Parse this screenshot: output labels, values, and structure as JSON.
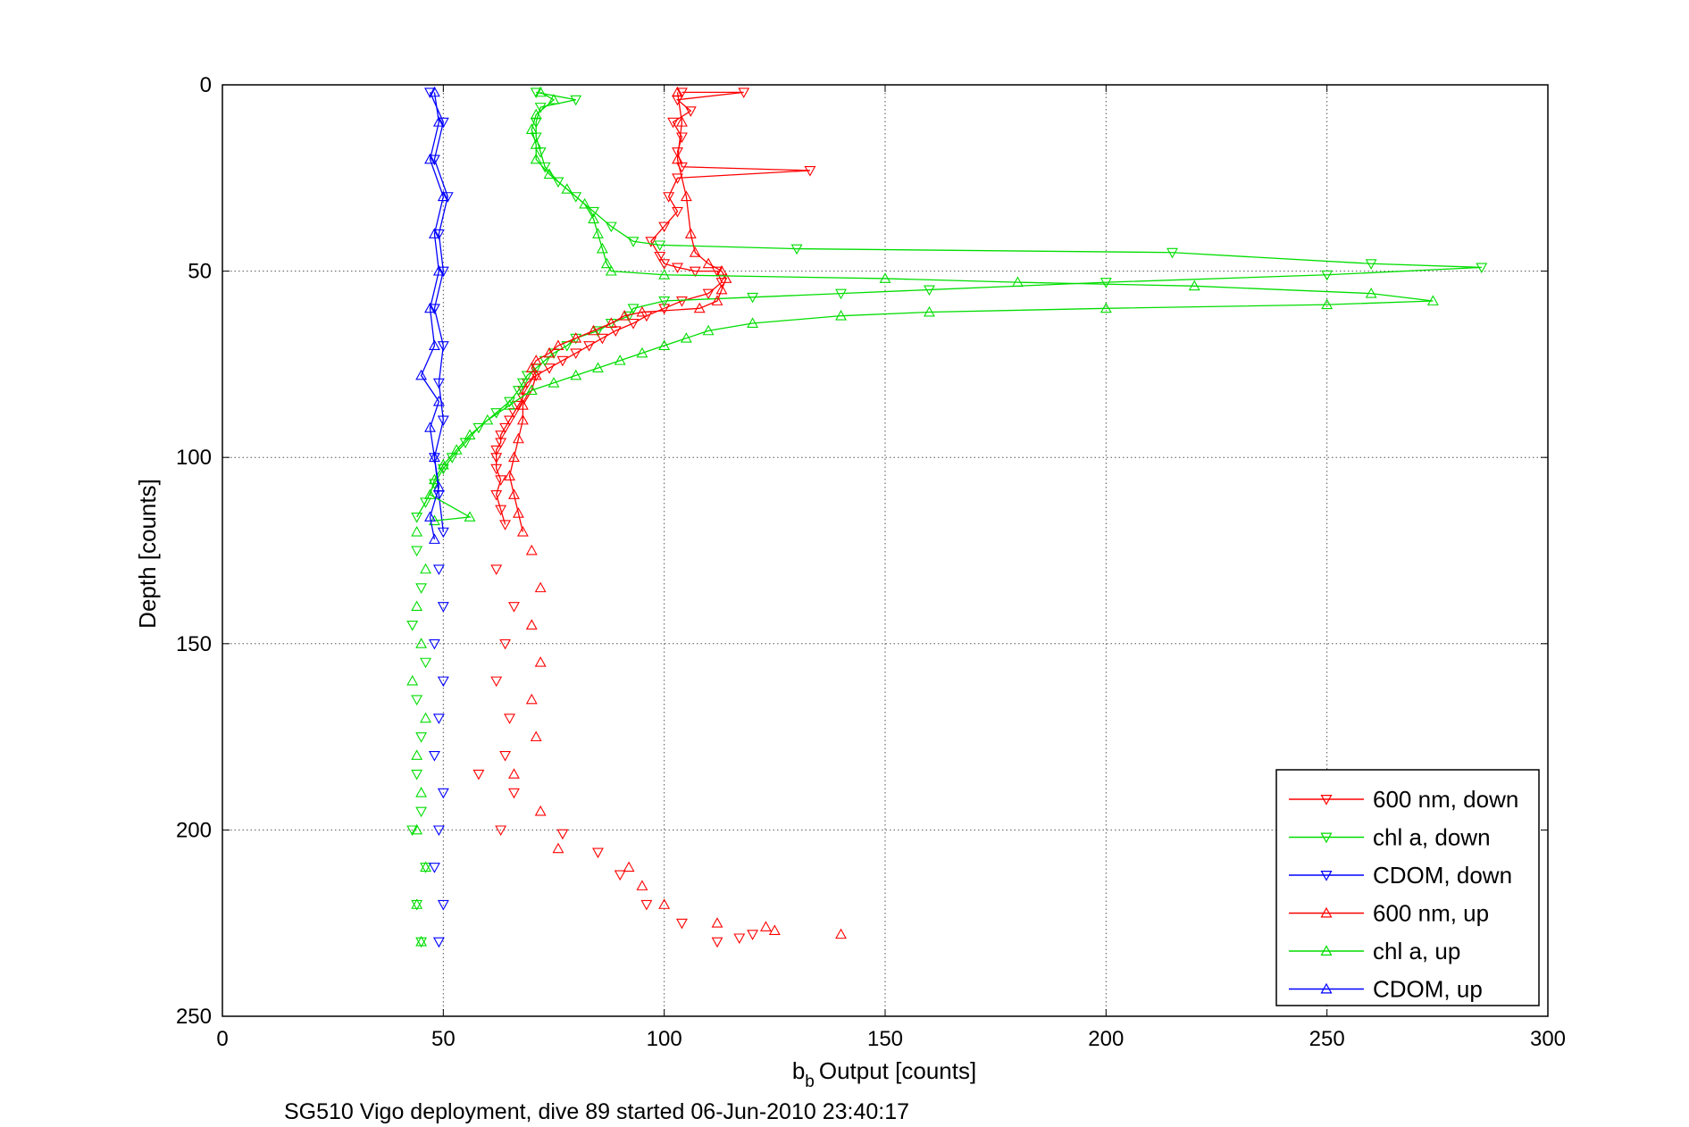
{
  "chart_data": {
    "type": "line",
    "title": "",
    "xlabel": "Output [counts]",
    "xlabel_prefix": "b",
    "xlabel_subscript": "b",
    "ylabel": "Depth [counts]",
    "caption": "SG510 Vigo deployment, dive 89 started 06-Jun-2010 23:40:17",
    "xlim": [
      0,
      300
    ],
    "ylim": [
      0,
      250
    ],
    "y_reversed": true,
    "x_ticks": [
      "0",
      "50",
      "100",
      "150",
      "200",
      "250",
      "300"
    ],
    "y_ticks": [
      "0",
      "50",
      "100",
      "150",
      "200",
      "250"
    ],
    "grid": true,
    "legend_position": "bottom-right",
    "series": [
      {
        "name": "600 nm, down",
        "color": "#ff0000",
        "marker": "triangle-down",
        "points": [
          [
            104,
            2
          ],
          [
            118,
            2
          ],
          [
            103,
            4
          ],
          [
            106,
            7
          ],
          [
            102,
            10
          ],
          [
            104,
            14
          ],
          [
            103,
            18
          ],
          [
            104,
            22
          ],
          [
            133,
            23
          ],
          [
            103,
            25
          ],
          [
            101,
            30
          ],
          [
            103,
            34
          ],
          [
            100,
            38
          ],
          [
            97,
            42
          ],
          [
            99,
            46
          ],
          [
            100,
            48
          ],
          [
            103,
            49
          ],
          [
            107,
            50
          ],
          [
            112,
            50
          ],
          [
            113,
            53
          ],
          [
            110,
            56
          ],
          [
            104,
            58
          ],
          [
            100,
            60
          ],
          [
            96,
            62
          ],
          [
            93,
            64
          ],
          [
            89,
            66
          ],
          [
            86,
            68
          ],
          [
            83,
            70
          ],
          [
            80,
            72
          ],
          [
            77,
            74
          ],
          [
            74,
            76
          ],
          [
            71,
            78
          ],
          [
            69,
            80
          ],
          [
            68,
            82
          ],
          [
            68,
            84
          ],
          [
            67,
            86
          ],
          [
            66,
            88
          ],
          [
            65,
            90
          ],
          [
            64,
            92
          ],
          [
            63,
            94
          ],
          [
            63,
            96
          ],
          [
            62,
            98
          ],
          [
            62,
            100
          ],
          [
            62,
            103
          ],
          [
            63,
            106
          ],
          [
            62,
            110
          ],
          [
            63,
            114
          ],
          [
            64,
            118
          ],
          [
            62,
            130
          ],
          [
            66,
            140
          ],
          [
            64,
            150
          ],
          [
            62,
            160
          ],
          [
            65,
            170
          ],
          [
            64,
            180
          ],
          [
            58,
            185
          ],
          [
            66,
            190
          ],
          [
            63,
            200
          ],
          [
            77,
            201
          ],
          [
            85,
            206
          ],
          [
            90,
            212
          ],
          [
            96,
            220
          ],
          [
            104,
            225
          ],
          [
            112,
            230
          ],
          [
            117,
            229
          ],
          [
            120,
            228
          ]
        ],
        "scatter_from": 118
      },
      {
        "name": "chl a, down",
        "color": "#00dd00",
        "marker": "triangle-down",
        "points": [
          [
            71,
            2
          ],
          [
            80,
            4
          ],
          [
            72,
            6
          ],
          [
            71,
            10
          ],
          [
            71,
            14
          ],
          [
            72,
            18
          ],
          [
            73,
            22
          ],
          [
            76,
            26
          ],
          [
            80,
            30
          ],
          [
            84,
            34
          ],
          [
            88,
            38
          ],
          [
            93,
            42
          ],
          [
            99,
            43
          ],
          [
            130,
            44
          ],
          [
            215,
            45
          ],
          [
            260,
            48
          ],
          [
            285,
            49
          ],
          [
            250,
            51
          ],
          [
            200,
            53
          ],
          [
            160,
            55
          ],
          [
            140,
            56
          ],
          [
            120,
            57
          ],
          [
            100,
            58
          ],
          [
            93,
            60
          ],
          [
            92,
            62
          ],
          [
            88,
            64
          ],
          [
            85,
            66
          ],
          [
            80,
            68
          ],
          [
            78,
            70
          ],
          [
            75,
            72
          ],
          [
            73,
            74
          ],
          [
            71,
            76
          ],
          [
            69,
            78
          ],
          [
            68,
            80
          ],
          [
            67,
            82
          ],
          [
            65,
            85
          ],
          [
            62,
            88
          ],
          [
            58,
            92
          ],
          [
            55,
            96
          ],
          [
            52,
            100
          ],
          [
            50,
            103
          ],
          [
            48,
            107
          ],
          [
            46,
            112
          ],
          [
            44,
            116
          ],
          [
            44,
            125
          ],
          [
            45,
            135
          ],
          [
            43,
            145
          ],
          [
            46,
            155
          ],
          [
            44,
            165
          ],
          [
            45,
            175
          ],
          [
            44,
            185
          ],
          [
            45,
            195
          ],
          [
            43,
            200
          ],
          [
            46,
            210
          ],
          [
            44,
            220
          ],
          [
            45,
            230
          ]
        ],
        "scatter_from": 118
      },
      {
        "name": "CDOM, down",
        "color": "#0000ff",
        "marker": "triangle-down",
        "points": [
          [
            47,
            2
          ],
          [
            50,
            10
          ],
          [
            48,
            20
          ],
          [
            51,
            30
          ],
          [
            49,
            40
          ],
          [
            50,
            50
          ],
          [
            48,
            60
          ],
          [
            50,
            70
          ],
          [
            49,
            80
          ],
          [
            50,
            90
          ],
          [
            48,
            100
          ],
          [
            49,
            110
          ],
          [
            50,
            120
          ],
          [
            49,
            130
          ],
          [
            50,
            140
          ],
          [
            48,
            150
          ],
          [
            50,
            160
          ],
          [
            49,
            170
          ],
          [
            48,
            180
          ],
          [
            50,
            190
          ],
          [
            49,
            200
          ],
          [
            48,
            210
          ],
          [
            50,
            220
          ],
          [
            49,
            230
          ]
        ],
        "scatter_from": 125
      },
      {
        "name": "600 nm, up",
        "color": "#ff0000",
        "marker": "triangle-up",
        "points": [
          [
            103,
            2
          ],
          [
            104,
            10
          ],
          [
            103,
            20
          ],
          [
            105,
            30
          ],
          [
            106,
            40
          ],
          [
            107,
            45
          ],
          [
            110,
            48
          ],
          [
            113,
            50
          ],
          [
            114,
            52
          ],
          [
            113,
            55
          ],
          [
            112,
            58
          ],
          [
            108,
            60
          ],
          [
            95,
            61
          ],
          [
            91,
            62
          ],
          [
            88,
            64
          ],
          [
            84,
            66
          ],
          [
            80,
            68
          ],
          [
            76,
            70
          ],
          [
            74,
            72
          ],
          [
            71,
            74
          ],
          [
            70,
            76
          ],
          [
            71,
            78
          ],
          [
            70,
            82
          ],
          [
            68,
            86
          ],
          [
            68,
            90
          ],
          [
            67,
            95
          ],
          [
            66,
            100
          ],
          [
            65,
            105
          ],
          [
            66,
            110
          ],
          [
            67,
            115
          ],
          [
            68,
            120
          ],
          [
            70,
            125
          ],
          [
            72,
            135
          ],
          [
            70,
            145
          ],
          [
            72,
            155
          ],
          [
            70,
            165
          ],
          [
            71,
            175
          ],
          [
            66,
            185
          ],
          [
            72,
            195
          ],
          [
            76,
            205
          ],
          [
            92,
            210
          ],
          [
            95,
            215
          ],
          [
            100,
            220
          ],
          [
            112,
            225
          ],
          [
            123,
            226
          ],
          [
            125,
            227
          ],
          [
            140,
            228
          ]
        ],
        "scatter_from": 120
      },
      {
        "name": "chl a, up",
        "color": "#00dd00",
        "marker": "triangle-up",
        "points": [
          [
            72,
            2
          ],
          [
            75,
            4
          ],
          [
            71,
            8
          ],
          [
            70,
            12
          ],
          [
            71,
            16
          ],
          [
            71,
            20
          ],
          [
            74,
            24
          ],
          [
            78,
            28
          ],
          [
            82,
            32
          ],
          [
            84,
            36
          ],
          [
            85,
            40
          ],
          [
            86,
            44
          ],
          [
            87,
            48
          ],
          [
            88,
            50
          ],
          [
            100,
            51
          ],
          [
            150,
            52
          ],
          [
            180,
            53
          ],
          [
            220,
            54
          ],
          [
            260,
            56
          ],
          [
            274,
            58
          ],
          [
            250,
            59
          ],
          [
            200,
            60
          ],
          [
            160,
            61
          ],
          [
            140,
            62
          ],
          [
            120,
            64
          ],
          [
            110,
            66
          ],
          [
            105,
            68
          ],
          [
            100,
            70
          ],
          [
            95,
            72
          ],
          [
            90,
            74
          ],
          [
            85,
            76
          ],
          [
            80,
            78
          ],
          [
            75,
            80
          ],
          [
            70,
            82
          ],
          [
            65,
            86
          ],
          [
            60,
            90
          ],
          [
            56,
            94
          ],
          [
            53,
            98
          ],
          [
            50,
            102
          ],
          [
            48,
            106
          ],
          [
            47,
            110
          ],
          [
            56,
            116
          ],
          [
            48,
            117
          ],
          [
            44,
            120
          ],
          [
            46,
            130
          ],
          [
            44,
            140
          ],
          [
            45,
            150
          ],
          [
            43,
            160
          ],
          [
            46,
            170
          ],
          [
            44,
            180
          ],
          [
            45,
            190
          ],
          [
            44,
            200
          ],
          [
            46,
            210
          ],
          [
            44,
            220
          ],
          [
            45,
            230
          ]
        ],
        "scatter_from": 118
      },
      {
        "name": "CDOM, up",
        "color": "#0000ff",
        "marker": "triangle-up",
        "points": [
          [
            48,
            2
          ],
          [
            49,
            10
          ],
          [
            47,
            20
          ],
          [
            50,
            30
          ],
          [
            48,
            40
          ],
          [
            49,
            50
          ],
          [
            47,
            60
          ],
          [
            48,
            70
          ],
          [
            45,
            78
          ],
          [
            49,
            85
          ],
          [
            47,
            92
          ],
          [
            48,
            100
          ],
          [
            49,
            108
          ],
          [
            47,
            116
          ],
          [
            48,
            122
          ]
        ],
        "scatter_from": 999
      }
    ]
  }
}
